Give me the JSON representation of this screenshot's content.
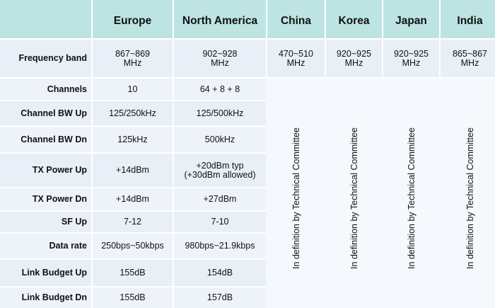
{
  "header": {
    "corner": "",
    "columns": [
      "Europe",
      "North America",
      "China",
      "Korea",
      "Japan",
      "India"
    ]
  },
  "frequency_band": {
    "label": "Frequency band",
    "values": [
      "867~869\nMHz",
      "902~928\nMHz",
      "470~510\nMHz",
      "920~925\nMHz",
      "920~925\nMHz",
      "865~867\nMHz"
    ]
  },
  "rows": [
    {
      "label": "Channels",
      "europe": "10",
      "north_america": "64 + 8 + 8"
    },
    {
      "label": "Channel BW Up",
      "europe": "125/250kHz",
      "north_america": "125/500kHz"
    },
    {
      "label": "Channel BW Dn",
      "europe": "125kHz",
      "north_america": "500kHz"
    },
    {
      "label": "TX Power Up",
      "europe": "+14dBm",
      "north_america": "+20dBm typ\n(+30dBm allowed)"
    },
    {
      "label": "TX Power Dn",
      "europe": "+14dBm",
      "north_america": "+27dBm"
    },
    {
      "label": "SF Up",
      "europe": "7-12",
      "north_america": "7-10"
    },
    {
      "label": "Data rate",
      "europe": "250bps~50kbps",
      "north_america": "980bps~21.9kbps"
    },
    {
      "label": "Link Budget Up",
      "europe": "155dB",
      "north_america": "154dB"
    },
    {
      "label": "Link Budget Dn",
      "europe": "155dB",
      "north_america": "157dB"
    }
  ],
  "pending_note": [
    "In definition by Technical Committee",
    "In definition by Technical Committee",
    "In definition by Technical Committee",
    "In definition by Technical Committee"
  ],
  "colors": {
    "header_bg": "#bde4e2",
    "row_bg_dark": "#e8eff6",
    "row_bg_light": "#eef3f9"
  }
}
